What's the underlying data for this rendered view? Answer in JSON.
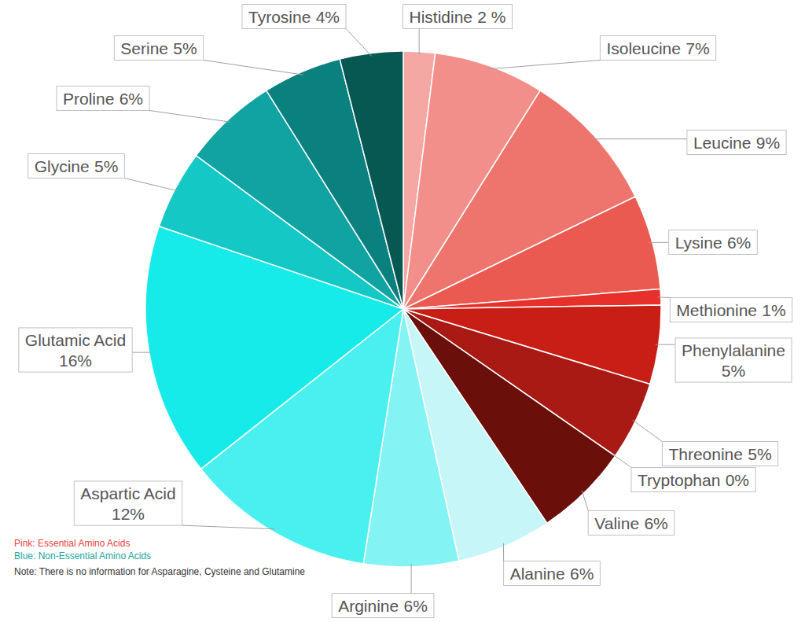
{
  "chart_data": {
    "type": "pie",
    "categories": [
      "Histidine",
      "Isoleucine",
      "Leucine",
      "Lysine",
      "Methionine",
      "Phenylalanine",
      "Threonine",
      "Tryptophan",
      "Valine",
      "Alanine",
      "Arginine",
      "Aspartic Acid",
      "Glutamic Acid",
      "Glycine",
      "Proline",
      "Serine",
      "Tyrosine"
    ],
    "values": [
      2,
      7,
      9,
      6,
      1,
      5,
      5,
      0,
      6,
      6,
      6,
      12,
      16,
      5,
      6,
      5,
      4
    ],
    "value_labels": [
      "2 %",
      "7%",
      "9%",
      "6%",
      "1%",
      "5%",
      "5%",
      "0%",
      "6%",
      "6%",
      "6%",
      "12%",
      "16%",
      "5%",
      "6%",
      "5%",
      "4%"
    ],
    "colors": [
      "#f4a7a3",
      "#f28f8a",
      "#ee756e",
      "#eb5a51",
      "#e8302b",
      "#c81e16",
      "#a91a14",
      "#8b1510",
      "#6b0f0b",
      "#c6f6f7",
      "#83f3f3",
      "#4af0ef",
      "#17ebe9",
      "#14c8c6",
      "#10a3a1",
      "#0b817f",
      "#075752"
    ],
    "data_labels": true,
    "annotations": [
      "Pink: Essential Amino Acids",
      "Blue: Non-Essential Amino Acids",
      "Note: There is no information for Asparagine, Cysteine and Glutamine"
    ]
  }
}
